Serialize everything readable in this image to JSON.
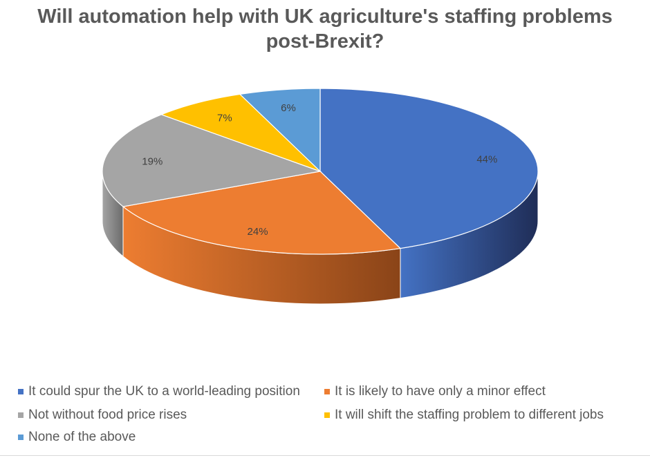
{
  "chart_data": {
    "type": "pie",
    "title": "Will automation help with UK agriculture's staffing problems post-Brexit?",
    "title_lines": [
      "Will automation help with UK agriculture's staffing problems",
      "post-Brexit?"
    ],
    "style": "3d",
    "legend_position": "bottom",
    "slices": [
      {
        "label": "It could spur the UK to a world-leading position",
        "value": 44,
        "data_label": "44%",
        "color": "#4472C4",
        "side_color": "#1F2D57"
      },
      {
        "label": "It is likely to have only a minor effect",
        "value": 24,
        "data_label": "24%",
        "color": "#ED7D31",
        "side_color": "#8A4418"
      },
      {
        "label": "Not without food price rises",
        "value": 19,
        "data_label": "19%",
        "color": "#A5A5A5",
        "side_color": "#6B6B6B"
      },
      {
        "label": "It will shift the staffing problem to different jobs",
        "value": 7,
        "data_label": "7%",
        "color": "#FFC000",
        "side_color": "#A67C00"
      },
      {
        "label": "None of the above",
        "value": 6,
        "data_label": "6%",
        "color": "#5B9BD5",
        "side_color": "#2E5F8A"
      }
    ]
  }
}
